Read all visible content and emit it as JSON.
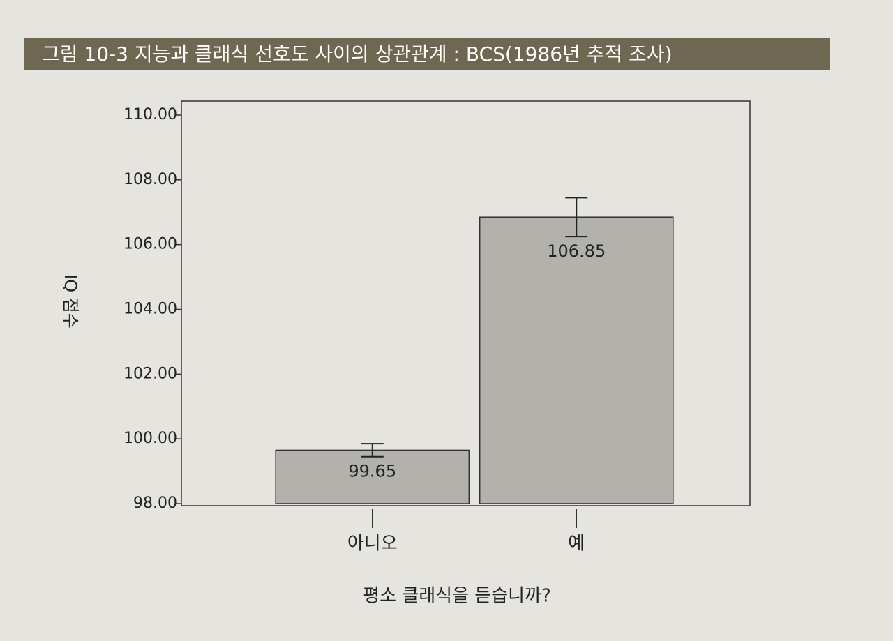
{
  "chart_data": {
    "type": "bar",
    "title": "그림 10-3 지능과 클래식 선호도 사이의 상관관계 : BCS(1986년 추적 조사)",
    "x_label": "평소 클래식을 듣습니까?",
    "y_label": "IQ 점수",
    "categories": [
      "아니오",
      "예"
    ],
    "values": [
      99.65,
      106.85
    ],
    "errors": [
      0.2,
      0.6
    ],
    "color": "#b3b1ac",
    "ylim": [
      98,
      110
    ],
    "yticks": [
      {
        "value": 98,
        "label": "98.00"
      },
      {
        "value": 100,
        "label": "100.00"
      },
      {
        "value": 102,
        "label": "102.00"
      },
      {
        "value": 104,
        "label": "104.00"
      },
      {
        "value": 106,
        "label": "106.00"
      },
      {
        "value": 108,
        "label": "108.00"
      },
      {
        "value": 110,
        "label": "110.00"
      }
    ]
  }
}
